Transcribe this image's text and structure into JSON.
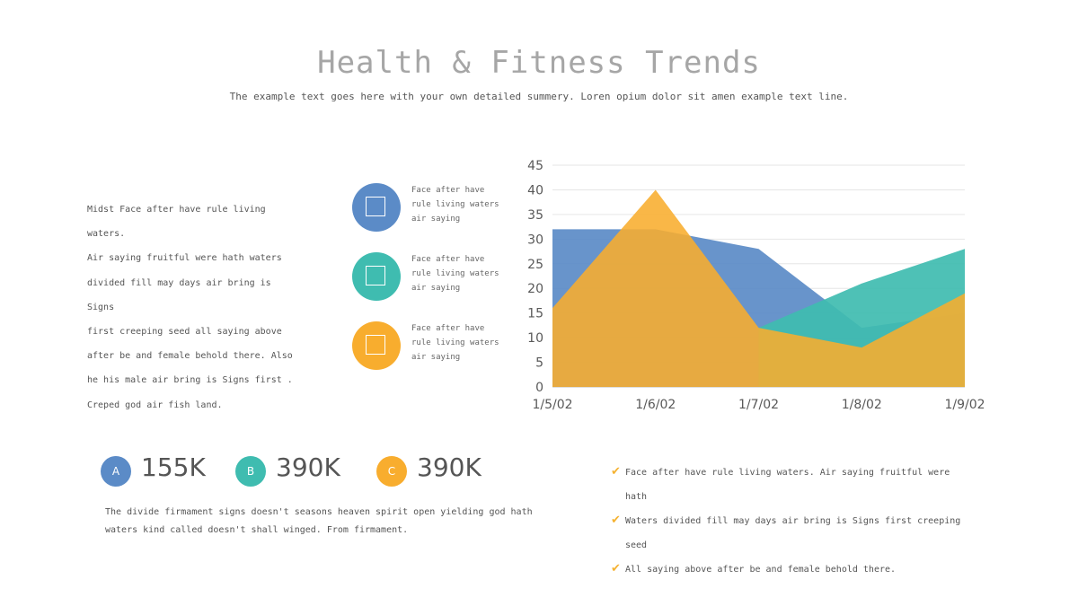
{
  "header": {
    "title": "Health & Fitness Trends",
    "subtitle": "The example text goes here with your own detailed summery. Loren opium dolor sit amen example text line."
  },
  "left_paragraph": [
    "Midst Face after have rule living waters.",
    "Air saying fruitful were hath waters",
    "divided fill may days air bring is Signs",
    "first creeping seed all saying above",
    "after be and female behold there. Also",
    "he his male air bring is Signs first .",
    "Creped god air fish land."
  ],
  "features": [
    {
      "lines": [
        "Face after have",
        "rule living waters",
        "air saying"
      ],
      "color": "#5b8bc7",
      "icon": "square-icon"
    },
    {
      "lines": [
        "Face after have",
        "rule living waters",
        "air saying"
      ],
      "color": "#3fbcb0",
      "icon": "square-icon"
    },
    {
      "lines": [
        "Face after have",
        "rule living waters",
        "air saying"
      ],
      "color": "#f8ad2e",
      "icon": "square-icon"
    }
  ],
  "chart_data": {
    "type": "area",
    "categories": [
      "1/5/02",
      "1/6/02",
      "1/7/02",
      "1/8/02",
      "1/9/02"
    ],
    "series": [
      {
        "values": [
          32,
          32,
          28,
          12,
          15
        ],
        "color": "#5b8bc7"
      },
      {
        "values": [
          null,
          null,
          12,
          21,
          28
        ],
        "color": "#3fbcb0"
      },
      {
        "values": [
          16,
          40,
          12,
          8,
          19
        ],
        "color": "#f8ad2e"
      }
    ],
    "ylim": [
      0,
      45
    ],
    "yticks": [
      0,
      5,
      10,
      15,
      20,
      25,
      30,
      35,
      40,
      45
    ],
    "grid": true
  },
  "stats": [
    {
      "badge": "A",
      "value": "155K",
      "color": "#5b8bc7"
    },
    {
      "badge": "B",
      "value": "390K",
      "color": "#3fbcb0"
    },
    {
      "badge": "C",
      "value": "390K",
      "color": "#f8ad2e"
    }
  ],
  "bottom_paragraph": [
    "The divide firmament signs doesn't seasons heaven spirit open yielding god hath",
    "waters kind called doesn't shall winged. From firmament."
  ],
  "checklist": [
    {
      "lines": [
        "Face after have rule living waters. Air saying fruitful were",
        "hath"
      ]
    },
    {
      "lines": [
        "Waters divided fill may days air bring is Signs first creeping",
        "seed"
      ]
    },
    {
      "lines": [
        "All saying above after be and female behold there."
      ]
    }
  ],
  "colors": {
    "accent_blue": "#5b8bc7",
    "accent_teal": "#3fbcb0",
    "accent_orange": "#f8ad2e",
    "check": "#f5b231"
  }
}
